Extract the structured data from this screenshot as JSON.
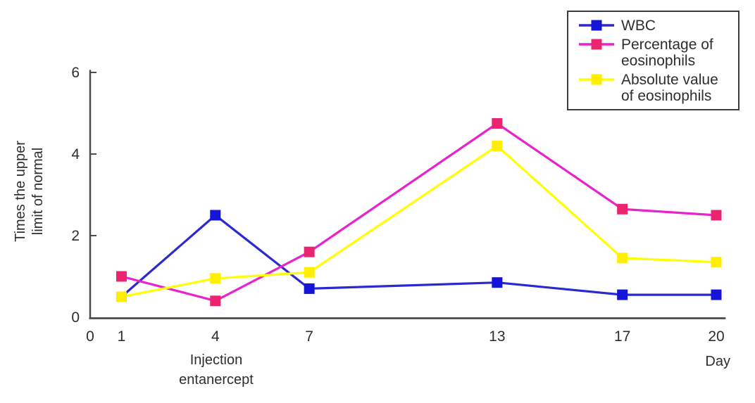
{
  "figure": {
    "y_axis_label": "Times the upper\nlimit of normal",
    "x_axis_label": "Day",
    "annotation": "Injection\nentanercept"
  },
  "legend": {
    "position": "top-right",
    "items": [
      {
        "label": "WBC"
      },
      {
        "label": "Percentage of\neosinophils"
      },
      {
        "label": "Absolute value\nof eosinophils"
      }
    ]
  },
  "chart_data": {
    "type": "line",
    "marker": "square",
    "title": "",
    "xlabel": "Day",
    "ylabel": "Times the upper limit of normal",
    "x": [
      1,
      4,
      7,
      13,
      17,
      20
    ],
    "x_ticks": [
      0,
      1,
      4,
      7,
      13,
      17,
      20
    ],
    "y_ticks": [
      0,
      2,
      4,
      6
    ],
    "xlim": [
      0,
      20.3
    ],
    "ylim": [
      0,
      6.2
    ],
    "grid": false,
    "legend_position": "top-right",
    "annotation": {
      "text": "Injection entanercept",
      "x": 4
    },
    "series": [
      {
        "name": "WBC",
        "line_color": "#2a2ad0",
        "marker_color": "#1515d8",
        "values": [
          0.5,
          2.5,
          0.7,
          0.85,
          0.55,
          0.55
        ]
      },
      {
        "name": "Percentage of eosinophils",
        "line_color": "#e822cc",
        "marker_color": "#ea2470",
        "values": [
          1.0,
          0.4,
          1.6,
          4.75,
          2.65,
          2.5
        ]
      },
      {
        "name": "Absolute value of eosinophils",
        "line_color": "#ffff00",
        "marker_color": "#ffee00",
        "values": [
          0.5,
          0.95,
          1.1,
          4.2,
          1.45,
          1.35
        ]
      }
    ],
    "colors": {
      "axis": "#4a4a4a",
      "text": "#2e2e2e"
    }
  }
}
